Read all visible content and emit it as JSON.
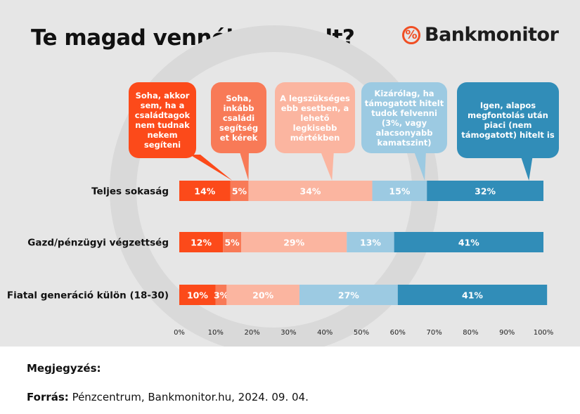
{
  "title": "Te magad vennél fel hitelt?",
  "logo": "Bankmonitor",
  "note": "Megjegyzés:",
  "source_label": "Forrás:",
  "source_text": " Pénzcentrum, Bankmonitor.hu, 2024. 09. 04.",
  "chart_data": {
    "type": "bar",
    "stacked": true,
    "orientation": "horizontal",
    "categories": [
      "Teljes sokaság",
      "Gazd/pénzügyi végzettség",
      "Fiatal generáció külön (18-30)"
    ],
    "series": [
      {
        "name": "Soha, akkor sem, ha a családtagok nem tudnak nekem segíteni",
        "color": "#fc4a1a",
        "values": [
          14,
          12,
          10
        ]
      },
      {
        "name": "Soha, inkább családi segítség et kérek",
        "color": "#f87a57",
        "values": [
          5,
          5,
          3
        ]
      },
      {
        "name": "A legszükséges ebb esetben, a lehető legkisebb mértékben",
        "color": "#fbb5a0",
        "values": [
          34,
          29,
          20
        ]
      },
      {
        "name": "Kizárólag, ha támogatott hitelt tudok felvenni (3%, vagy alacsonyabb kamatszint)",
        "color": "#9ccae2",
        "values": [
          15,
          13,
          27
        ]
      },
      {
        "name": "Igen, alapos megfontolás után piaci (nem támogatott) hitelt is",
        "color": "#318db8",
        "values": [
          32,
          41,
          41
        ]
      }
    ],
    "xlim": [
      0,
      100
    ],
    "xticks": [
      "0%",
      "10%",
      "20%",
      "30%",
      "40%",
      "50%",
      "60%",
      "70%",
      "80%",
      "90%",
      "100%"
    ],
    "legend": "callouts-top",
    "grid": false
  }
}
